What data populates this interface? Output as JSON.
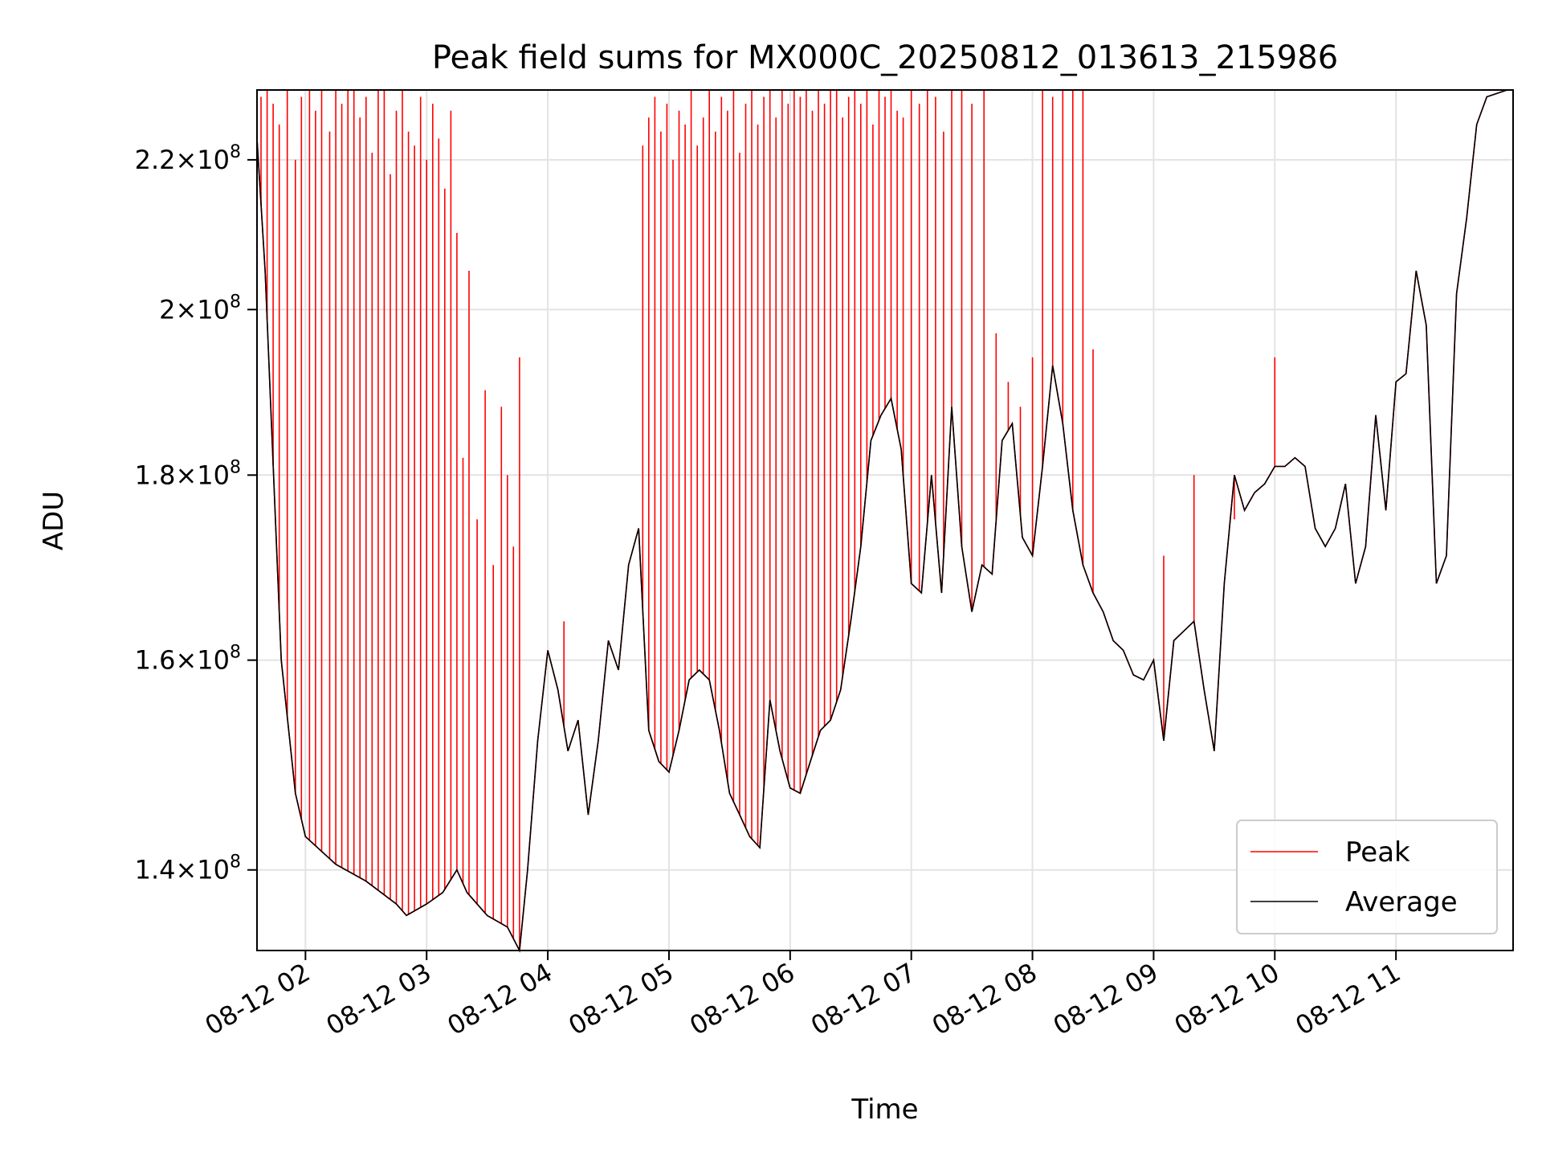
{
  "chart_data": {
    "type": "line",
    "title": "Peak field sums for MX000C_20250812_013613_215986",
    "xlabel": "Time",
    "ylabel": "ADU",
    "x_range": [
      "2025-08-12 01:36",
      "2025-08-12 11:58"
    ],
    "ylim": [
      133000000.0,
      230000000.0
    ],
    "y_scale": "log",
    "grid": true,
    "legend_position": "lower right",
    "x_ticks": [
      {
        "label": "08-12 02",
        "value": "2025-08-12 02:00"
      },
      {
        "label": "08-12 03",
        "value": "2025-08-12 03:00"
      },
      {
        "label": "08-12 04",
        "value": "2025-08-12 04:00"
      },
      {
        "label": "08-12 05",
        "value": "2025-08-12 05:00"
      },
      {
        "label": "08-12 06",
        "value": "2025-08-12 06:00"
      },
      {
        "label": "08-12 07",
        "value": "2025-08-12 07:00"
      },
      {
        "label": "08-12 08",
        "value": "2025-08-12 08:00"
      },
      {
        "label": "08-12 09",
        "value": "2025-08-12 09:00"
      },
      {
        "label": "08-12 10",
        "value": "2025-08-12 10:00"
      },
      {
        "label": "08-12 11",
        "value": "2025-08-12 11:00"
      }
    ],
    "y_ticks": [
      {
        "value": 140000000.0,
        "mantissa": "1.4",
        "exponent": "8"
      },
      {
        "value": 160000000.0,
        "mantissa": "1.6",
        "exponent": "8"
      },
      {
        "value": 180000000.0,
        "mantissa": "1.8",
        "exponent": "8"
      },
      {
        "value": 200000000.0,
        "mantissa": "2",
        "exponent": "8"
      },
      {
        "value": 220000000.0,
        "mantissa": "2.2",
        "exponent": "8"
      }
    ],
    "series": [
      {
        "name": "Average",
        "color": "#000000",
        "x": [
          "01:36",
          "01:40",
          "01:48",
          "01:55",
          "02:00",
          "02:15",
          "02:30",
          "02:45",
          "02:50",
          "03:00",
          "03:08",
          "03:15",
          "03:20",
          "03:30",
          "03:40",
          "03:46",
          "03:50",
          "03:55",
          "04:00",
          "04:05",
          "04:10",
          "04:15",
          "04:20",
          "04:25",
          "04:30",
          "04:35",
          "04:40",
          "04:45",
          "04:50",
          "04:55",
          "05:00",
          "05:05",
          "05:10",
          "05:15",
          "05:20",
          "05:25",
          "05:30",
          "05:35",
          "05:40",
          "05:45",
          "05:50",
          "05:55",
          "06:00",
          "06:05",
          "06:10",
          "06:15",
          "06:20",
          "06:25",
          "06:30",
          "06:35",
          "06:40",
          "06:45",
          "06:50",
          "06:55",
          "07:00",
          "07:05",
          "07:10",
          "07:15",
          "07:20",
          "07:25",
          "07:30",
          "07:35",
          "07:40",
          "07:45",
          "07:50",
          "07:55",
          "08:00",
          "08:05",
          "08:10",
          "08:15",
          "08:20",
          "08:25",
          "08:30",
          "08:35",
          "08:40",
          "08:45",
          "08:50",
          "08:55",
          "09:00",
          "09:05",
          "09:10",
          "09:15",
          "09:20",
          "09:25",
          "09:30",
          "09:35",
          "09:40",
          "09:45",
          "09:50",
          "09:55",
          "10:00",
          "10:05",
          "10:10",
          "10:15",
          "10:20",
          "10:25",
          "10:30",
          "10:35",
          "10:40",
          "10:45",
          "10:50",
          "10:55",
          "11:00",
          "11:05",
          "11:10",
          "11:15",
          "11:20",
          "11:25",
          "11:30",
          "11:35",
          "11:40",
          "11:45",
          "11:50",
          "11:55",
          "11:58"
        ],
        "y": [
          223000000.0,
          205000000.0,
          160000000.0,
          147000000.0,
          143000000.0,
          140500000.0,
          139000000.0,
          137000000.0,
          136000000.0,
          137000000.0,
          138000000.0,
          140000000.0,
          138000000.0,
          136000000.0,
          135000000.0,
          133000000.0,
          140000000.0,
          152000000.0,
          161000000.0,
          157000000.0,
          151000000.0,
          154000000.0,
          145000000.0,
          152000000.0,
          162000000.0,
          159000000.0,
          170000000.0,
          174000000.0,
          153000000.0,
          150000000.0,
          149000000.0,
          153000000.0,
          158000000.0,
          159000000.0,
          158000000.0,
          153000000.0,
          147000000.0,
          145000000.0,
          143000000.0,
          142000000.0,
          156000000.0,
          151000000.0,
          147500000.0,
          147000000.0,
          150000000.0,
          153000000.0,
          154000000.0,
          157000000.0,
          164000000.0,
          172000000.0,
          184000000.0,
          187000000.0,
          189000000.0,
          183000000.0,
          168000000.0,
          167000000.0,
          180000000.0,
          167000000.0,
          188000000.0,
          172000000.0,
          165000000.0,
          170000000.0,
          169000000.0,
          184000000.0,
          186000000.0,
          173000000.0,
          171000000.0,
          181000000.0,
          193000000.0,
          186000000.0,
          176000000.0,
          170000000.0,
          167000000.0,
          165000000.0,
          162000000.0,
          161000000.0,
          158500000.0,
          158000000.0,
          160000000.0,
          152000000.0,
          162000000.0,
          163000000.0,
          164000000.0,
          157000000.0,
          151000000.0,
          168000000.0,
          180000000.0,
          176000000.0,
          178000000.0,
          179000000.0,
          181000000.0,
          181000000.0,
          182000000.0,
          181000000.0,
          174000000.0,
          172000000.0,
          174000000.0,
          179000000.0,
          168000000.0,
          172000000.0,
          187000000.0,
          176000000.0,
          191000000.0,
          192000000.0,
          205000000.0,
          198000000.0,
          168000000.0,
          171000000.0,
          202000000.0,
          212000000.0,
          225000000.0,
          229000000.0,
          229500000.0,
          230000000.0,
          230000000.0
        ]
      },
      {
        "name": "Peak",
        "color": "#ff0000",
        "spike_x": [
          "01:38",
          "01:41",
          "01:44",
          "01:47",
          "01:51",
          "01:55",
          "01:58",
          "02:02",
          "02:05",
          "02:08",
          "02:12",
          "02:15",
          "02:18",
          "02:21",
          "02:24",
          "02:27",
          "02:30",
          "02:33",
          "02:36",
          "02:39",
          "02:42",
          "02:45",
          "02:48",
          "02:51",
          "02:54",
          "02:57",
          "03:00",
          "03:03",
          "03:06",
          "03:09",
          "03:12",
          "03:15",
          "03:18",
          "03:21",
          "03:25",
          "03:29",
          "03:33",
          "03:37",
          "03:40",
          "03:43",
          "03:46",
          "04:08",
          "04:47",
          "04:50",
          "04:53",
          "04:56",
          "04:59",
          "05:02",
          "05:05",
          "05:08",
          "05:11",
          "05:14",
          "05:17",
          "05:20",
          "05:23",
          "05:26",
          "05:29",
          "05:32",
          "05:35",
          "05:38",
          "05:41",
          "05:44",
          "05:47",
          "05:50",
          "05:53",
          "05:56",
          "05:59",
          "06:02",
          "06:05",
          "06:08",
          "06:11",
          "06:14",
          "06:17",
          "06:20",
          "06:23",
          "06:26",
          "06:29",
          "06:32",
          "06:35",
          "06:38",
          "06:41",
          "06:44",
          "06:47",
          "06:50",
          "06:53",
          "06:56",
          "07:00",
          "07:04",
          "07:08",
          "07:12",
          "07:16",
          "07:20",
          "07:25",
          "07:30",
          "07:36",
          "07:42",
          "07:48",
          "07:54",
          "08:00",
          "08:05",
          "08:10",
          "08:15",
          "08:20",
          "08:25",
          "08:30",
          "09:05",
          "09:20",
          "09:40",
          "10:00"
        ],
        "spike_y": [
          229000000.0,
          230000000.0,
          228000000.0,
          225000000.0,
          230000000.0,
          220000000.0,
          229000000.0,
          230000000.0,
          227000000.0,
          230000000.0,
          224000000.0,
          230000000.0,
          228000000.0,
          230000000.0,
          230000000.0,
          226000000.0,
          229000000.0,
          221000000.0,
          230000000.0,
          230000000.0,
          218000000.0,
          227000000.0,
          230000000.0,
          224000000.0,
          222000000.0,
          229000000.0,
          220000000.0,
          228000000.0,
          223000000.0,
          216000000.0,
          227000000.0,
          210000000.0,
          182000000.0,
          205000000.0,
          175000000.0,
          190000000.0,
          170000000.0,
          188000000.0,
          180000000.0,
          172000000.0,
          194000000.0,
          164000000.0,
          222000000.0,
          226000000.0,
          229000000.0,
          224000000.0,
          228000000.0,
          220000000.0,
          227000000.0,
          225000000.0,
          230000000.0,
          222000000.0,
          226000000.0,
          230000000.0,
          224000000.0,
          229000000.0,
          227000000.0,
          230000000.0,
          221000000.0,
          228000000.0,
          230000000.0,
          225000000.0,
          229000000.0,
          230000000.0,
          226000000.0,
          230000000.0,
          228000000.0,
          230000000.0,
          229000000.0,
          230000000.0,
          227000000.0,
          230000000.0,
          228000000.0,
          230000000.0,
          230000000.0,
          226000000.0,
          229000000.0,
          230000000.0,
          228000000.0,
          230000000.0,
          225000000.0,
          230000000.0,
          229000000.0,
          230000000.0,
          227000000.0,
          226000000.0,
          230000000.0,
          228000000.0,
          230000000.0,
          229000000.0,
          224000000.0,
          230000000.0,
          230000000.0,
          228000000.0,
          230000000.0,
          197000000.0,
          191000000.0,
          188000000.0,
          194000000.0,
          230000000.0,
          229000000.0,
          230000000.0,
          230000000.0,
          230000000.0,
          195000000.0,
          171000000.0,
          180000000.0,
          175000000.0,
          194000000.0
        ]
      }
    ],
    "legend": [
      {
        "label": "Peak",
        "color": "#ff0000"
      },
      {
        "label": "Average",
        "color": "#000000"
      }
    ]
  }
}
